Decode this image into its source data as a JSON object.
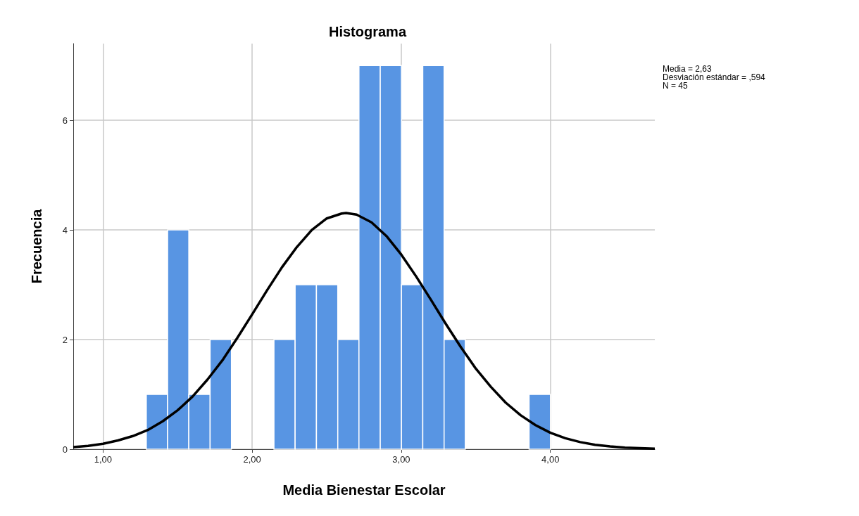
{
  "chart_data": {
    "type": "histogram",
    "title": "Histograma",
    "xlabel": "Media Bienestar Escolar",
    "ylabel": "Frecuencia",
    "bins": [
      1.29,
      1.433,
      1.575,
      1.718,
      1.861,
      2.003,
      2.146,
      2.288,
      2.431,
      2.574,
      2.716,
      2.859,
      3.001,
      3.144,
      3.287,
      3.429,
      3.572,
      3.715,
      3.857,
      4.0
    ],
    "values": [
      1,
      4,
      1,
      2,
      0,
      0,
      2,
      3,
      3,
      2,
      7,
      7,
      3,
      7,
      2,
      0,
      0,
      0,
      1
    ],
    "color": "#5895e3",
    "series": [
      {
        "type": "line",
        "color": "#000000",
        "x": [
          0.8,
          0.9,
          1.0,
          1.1,
          1.2,
          1.3,
          1.4,
          1.5,
          1.6,
          1.7,
          1.8,
          1.9,
          2.0,
          2.1,
          2.2,
          2.3,
          2.4,
          2.5,
          2.6,
          2.63,
          2.7,
          2.8,
          2.9,
          3.0,
          3.1,
          3.2,
          3.3,
          3.4,
          3.5,
          3.6,
          3.7,
          3.8,
          3.9,
          4.0,
          4.1,
          4.2,
          4.3,
          4.4,
          4.5,
          4.6,
          4.7
        ],
        "values": [
          0.04,
          0.06,
          0.1,
          0.16,
          0.24,
          0.35,
          0.51,
          0.71,
          0.96,
          1.27,
          1.62,
          2.03,
          2.46,
          2.9,
          3.32,
          3.69,
          4.0,
          4.21,
          4.3,
          4.31,
          4.28,
          4.14,
          3.89,
          3.55,
          3.15,
          2.72,
          2.28,
          1.86,
          1.47,
          1.14,
          0.85,
          0.62,
          0.44,
          0.3,
          0.2,
          0.13,
          0.08,
          0.05,
          0.03,
          0.02,
          0.01
        ]
      }
    ],
    "xlim": [
      0.8,
      4.7
    ],
    "xticks": [
      {
        "value": 1,
        "label": "1,00"
      },
      {
        "value": 2,
        "label": "2,00"
      },
      {
        "value": 3,
        "label": "3,00"
      },
      {
        "value": 4,
        "label": "4,00"
      }
    ],
    "ylim": [
      0,
      7.4
    ],
    "yticks": [
      0,
      2,
      4,
      6
    ],
    "grid": true,
    "annotations": [
      "Media = 2,63",
      "Desviación estándar = ,594",
      "N = 45"
    ]
  }
}
